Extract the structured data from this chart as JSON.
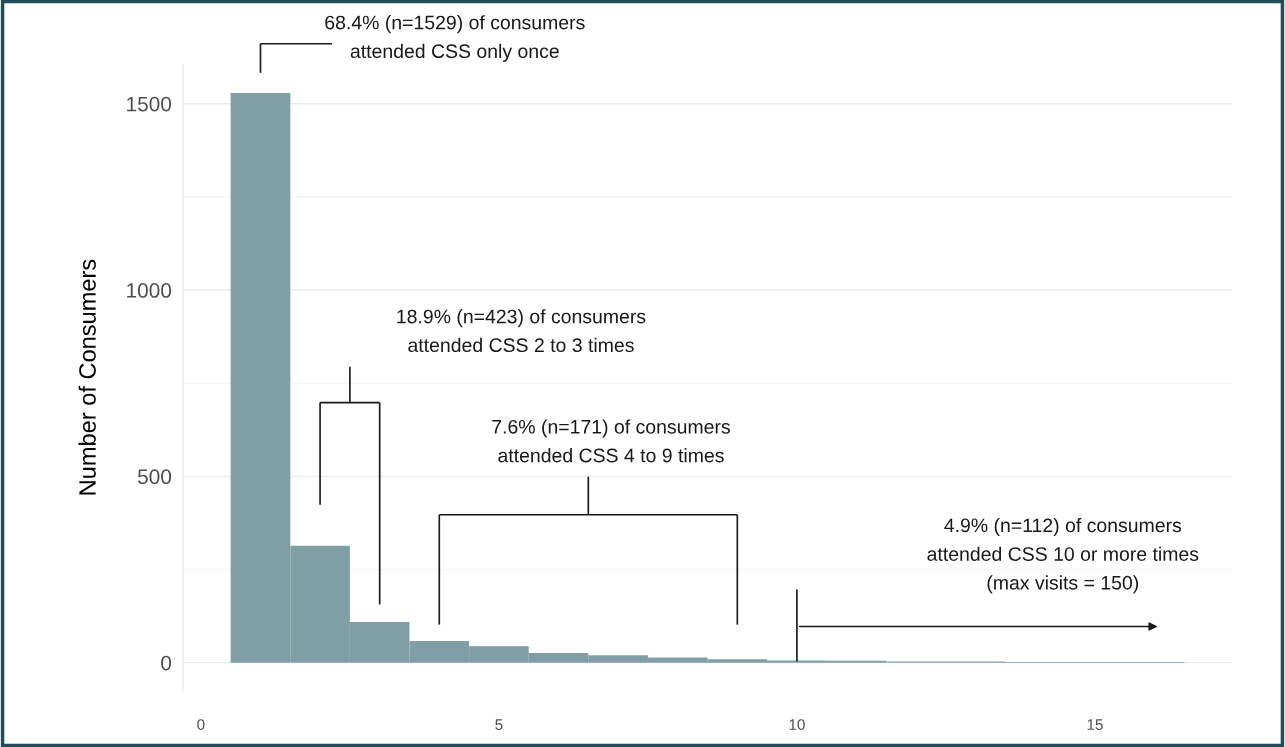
{
  "chart_data": {
    "type": "histogram",
    "ylabel": "Number of Consumers",
    "bins": [
      0.5,
      1.5,
      2.5,
      3.5,
      4.5,
      5.5,
      6.5,
      7.5,
      8.5,
      9.5,
      10.5,
      11.5,
      12.5,
      13.5,
      14.5,
      15.5,
      16.5
    ],
    "values": [
      1529,
      314,
      109,
      58,
      44,
      26,
      20,
      14,
      9,
      6,
      5,
      3,
      3,
      2,
      2,
      2
    ],
    "color": "#7f9ea5",
    "xlim": [
      -0.3,
      17.3
    ],
    "xticks": [
      0,
      5,
      10,
      15
    ],
    "ylim": [
      -76,
      1606
    ],
    "yticks": [
      0,
      500,
      1000,
      1500
    ],
    "grid": "y",
    "annotations": [
      "68.4% (n=1529) of consumers\nattended CSS only once",
      "18.9% (n=423) of consumers\nattended CSS 2 to 3 times",
      "7.6% (n=171) of consumers\nattended CSS 4 to 9 times",
      "4.9% (n=112) of consumers\nattended CSS 10 or more times\n(max visits = 150)"
    ]
  }
}
